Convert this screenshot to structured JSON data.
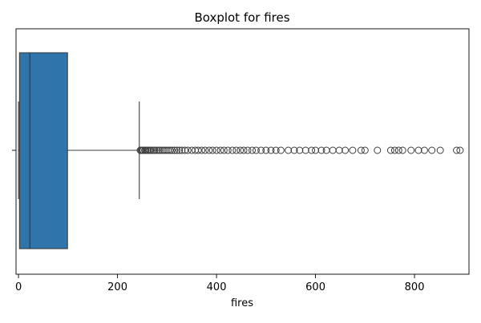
{
  "chart_data": {
    "type": "boxplot",
    "title": "Boxplot for fires",
    "xlabel": "fires",
    "ylabel": "",
    "orientation": "horizontal",
    "xlim": [
      -5,
      910
    ],
    "x_ticks": [
      0,
      200,
      400,
      600,
      800
    ],
    "x_tick_labels": [
      "0",
      "200",
      "400",
      "600",
      "800"
    ],
    "y_tick_labels": [
      ""
    ],
    "grid": false,
    "legend": false,
    "colors": {
      "box_fill": "#2f74aa",
      "line": "#3c3c3c"
    },
    "box": {
      "whisker_low": 0,
      "q1": 2,
      "median": 23,
      "q3": 99,
      "whisker_high": 244
    },
    "outliers": [
      246,
      248,
      250,
      252,
      255,
      257,
      260,
      262,
      265,
      268,
      272,
      275,
      279,
      283,
      286,
      290,
      294,
      298,
      302,
      306,
      310,
      315,
      320,
      325,
      330,
      336,
      342,
      350,
      357,
      363,
      370,
      377,
      385,
      392,
      400,
      408,
      415,
      423,
      432,
      440,
      448,
      455,
      463,
      472,
      480,
      490,
      500,
      510,
      520,
      530,
      545,
      557,
      568,
      580,
      592,
      600,
      612,
      622,
      635,
      648,
      660,
      675,
      692,
      700,
      725,
      752,
      760,
      768,
      776,
      793,
      808,
      820,
      835,
      852,
      885,
      892
    ]
  }
}
